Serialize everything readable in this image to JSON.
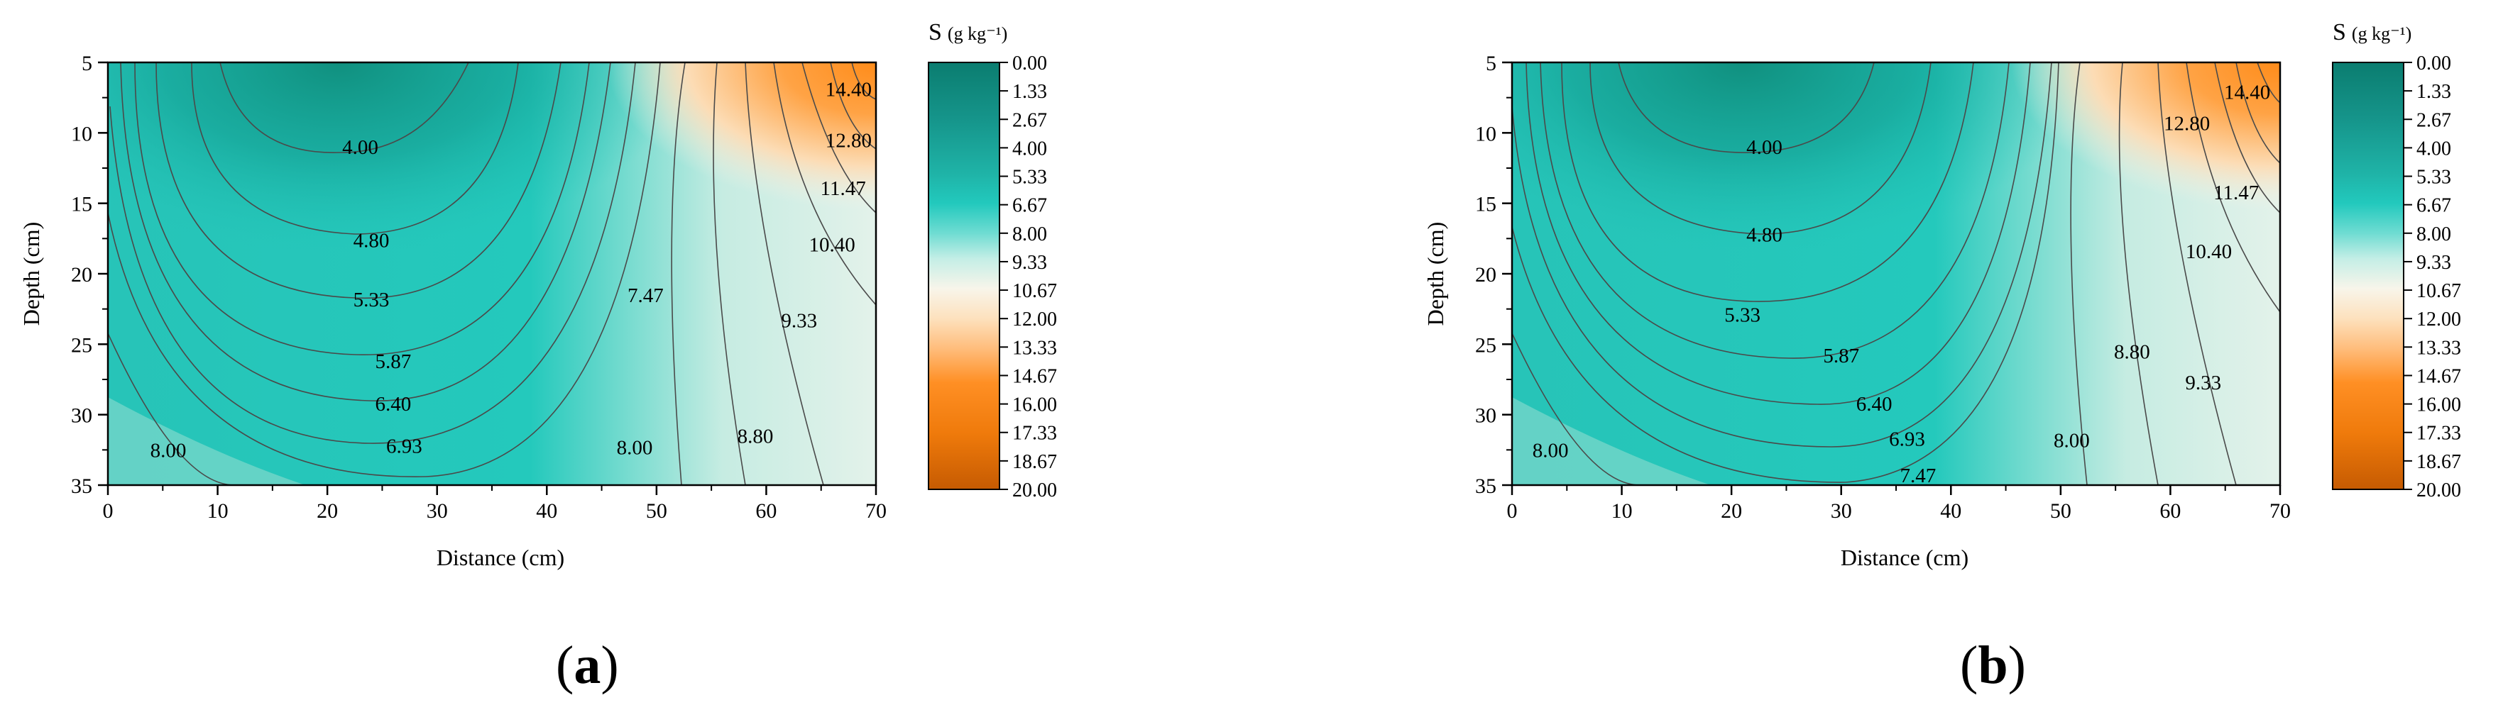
{
  "colors": {
    "scale": [
      "#0b7d70",
      "#15948a",
      "#1aa89e",
      "#1fbdb1",
      "#22c9bd",
      "#3fd4c8",
      "#96e3d9",
      "#d0efe6",
      "#f8f4e8",
      "#fde0b8",
      "#ffb26a",
      "#ff8a1f",
      "#ef7a0b",
      "#c65b02"
    ],
    "contour_line": "#4a4a4a"
  },
  "chart_data": [
    {
      "panel": "a",
      "type": "heatmap",
      "subtype": "filled-contour",
      "xlabel": "Distance (cm)",
      "ylabel": "Depth (cm)",
      "xlim": [
        0,
        70
      ],
      "ylim": [
        5,
        35
      ],
      "y_inverted": true,
      "xticks": [
        0,
        10,
        20,
        30,
        40,
        50,
        60,
        70
      ],
      "yticks": [
        5,
        10,
        15,
        20,
        25,
        30,
        35
      ],
      "colorbar": {
        "title": "S",
        "unit": "(g kg⁻¹)",
        "range": [
          0,
          20
        ],
        "ticks": [
          "0.00",
          "1.33",
          "2.67",
          "4.00",
          "5.33",
          "6.67",
          "8.00",
          "9.33",
          "10.67",
          "12.00",
          "13.33",
          "14.67",
          "16.00",
          "17.33",
          "18.67",
          "20.00"
        ]
      },
      "contour_labels": [
        {
          "text": "4.00",
          "x": 23,
          "y": 11
        },
        {
          "text": "4.80",
          "x": 24,
          "y": 17.6
        },
        {
          "text": "5.33",
          "x": 24,
          "y": 21.8
        },
        {
          "text": "5.87",
          "x": 26,
          "y": 26.2
        },
        {
          "text": "6.40",
          "x": 26,
          "y": 29.2
        },
        {
          "text": "6.93",
          "x": 27,
          "y": 32.2
        },
        {
          "text": "7.47",
          "x": 49,
          "y": 21.5
        },
        {
          "text": "8.00",
          "x": 5.5,
          "y": 32.5
        },
        {
          "text": "8.00",
          "x": 48,
          "y": 32.3
        },
        {
          "text": "8.80",
          "x": 59,
          "y": 31.5
        },
        {
          "text": "9.33",
          "x": 63,
          "y": 23.3
        },
        {
          "text": "10.40",
          "x": 66,
          "y": 17.9
        },
        {
          "text": "11.47",
          "x": 67,
          "y": 13.9
        },
        {
          "text": "12.80",
          "x": 67.5,
          "y": 10.5
        },
        {
          "text": "14.40",
          "x": 67.5,
          "y": 6.9
        }
      ]
    },
    {
      "panel": "b",
      "type": "heatmap",
      "subtype": "filled-contour",
      "xlabel": "Distance (cm)",
      "ylabel": "Depth (cm)",
      "xlim": [
        0,
        70
      ],
      "ylim": [
        5,
        35
      ],
      "y_inverted": true,
      "xticks": [
        0,
        10,
        20,
        30,
        40,
        50,
        60,
        70
      ],
      "yticks": [
        5,
        10,
        15,
        20,
        25,
        30,
        35
      ],
      "colorbar": {
        "title": "S",
        "unit": "(g kg⁻¹)",
        "range": [
          0,
          20
        ],
        "ticks": [
          "0.00",
          "1.33",
          "2.67",
          "4.00",
          "5.33",
          "6.67",
          "8.00",
          "9.33",
          "10.67",
          "12.00",
          "13.33",
          "14.67",
          "16.00",
          "17.33",
          "18.67",
          "20.00"
        ]
      },
      "contour_labels": [
        {
          "text": "4.00",
          "x": 23,
          "y": 11
        },
        {
          "text": "4.80",
          "x": 23,
          "y": 17.2
        },
        {
          "text": "5.33",
          "x": 21,
          "y": 22.9
        },
        {
          "text": "5.87",
          "x": 30,
          "y": 25.8
        },
        {
          "text": "6.40",
          "x": 33,
          "y": 29.2
        },
        {
          "text": "6.93",
          "x": 36,
          "y": 31.7
        },
        {
          "text": "7.47",
          "x": 37,
          "y": 34.3
        },
        {
          "text": "8.00",
          "x": 3.5,
          "y": 32.5
        },
        {
          "text": "8.00",
          "x": 51,
          "y": 31.8
        },
        {
          "text": "8.80",
          "x": 56.5,
          "y": 25.5
        },
        {
          "text": "9.33",
          "x": 63,
          "y": 27.7
        },
        {
          "text": "10.40",
          "x": 63.5,
          "y": 18.4
        },
        {
          "text": "11.47",
          "x": 66,
          "y": 14.2
        },
        {
          "text": "12.80",
          "x": 61.5,
          "y": 9.3
        },
        {
          "text": "14.40",
          "x": 67,
          "y": 7.1
        }
      ]
    }
  ],
  "panel_labels": {
    "a": "a",
    "b": "b"
  }
}
